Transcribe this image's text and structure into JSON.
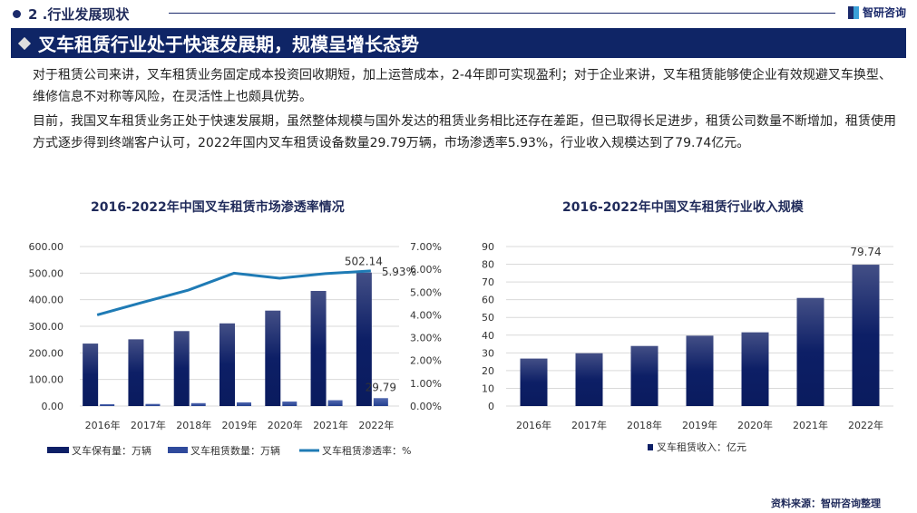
{
  "header": {
    "section": "2 .行业发展现状",
    "logo": "智研咨询",
    "title": "叉车租赁行业处于快速发展期，规模呈增长态势"
  },
  "body": {
    "p1": "对于租赁公司来讲，叉车租赁业务固定成本投资回收期短，加上运营成本，2-4年即可实现盈利；对于企业来讲，叉车租赁能够使企业有效规避叉车换型、维修信息不对称等风险，在灵活性上也颇具优势。",
    "p2": "目前，我国叉车租赁业务正处于快速发展期，虽然整体规模与国外发达的租赁业务相比还存在差距，但已取得长足进步，租赁公司数量不断增加，租赁使用方式逐步得到终端客户认可，2022年国内叉车租赁设备数量29.79万辆，市场渗透率5.93%，行业收入规模达到了79.74亿元。"
  },
  "source": "资料来源：智研咨询整理",
  "colors": {
    "brand": "#0f2566",
    "bar_dark": "#0d1f66",
    "bar_light": "#2f4a9c",
    "line": "#1f7bb5"
  },
  "chart_data": [
    {
      "type": "bar+line",
      "title": "2016-2022年中国叉车租赁市场渗透率情况",
      "categories": [
        "2016年",
        "2017年",
        "2018年",
        "2019年",
        "2020年",
        "2021年",
        "2022年"
      ],
      "ylim": [
        0,
        600
      ],
      "y_ticks": [
        "0.00",
        "100.00",
        "200.00",
        "300.00",
        "400.00",
        "500.00",
        "600.00"
      ],
      "y2lim": [
        0,
        7
      ],
      "y2_ticks": [
        "0.00%",
        "1.00%",
        "2.00%",
        "3.00%",
        "4.00%",
        "5.00%",
        "6.00%",
        "7.00%"
      ],
      "grid": true,
      "legend": "bottom",
      "series": [
        {
          "name": "叉车保有量：万辆",
          "type": "bar",
          "values": [
            235,
            251,
            282,
            311,
            359,
            433,
            502.14
          ],
          "labels": {
            "6": "502.14"
          }
        },
        {
          "name": "叉车租赁数量：万辆",
          "type": "bar",
          "values": [
            7,
            8,
            11,
            14,
            17,
            22,
            29.79
          ],
          "labels": {
            "6": "29.79"
          }
        },
        {
          "name": "叉车租赁渗透率：%",
          "type": "line",
          "axis": "right",
          "values": [
            4.0,
            4.55,
            5.09,
            5.83,
            5.61,
            5.81,
            5.93
          ],
          "labels": {
            "6": "5.93%"
          }
        }
      ]
    },
    {
      "type": "bar",
      "title": "2016-2022年中国叉车租赁行业收入规模",
      "categories": [
        "2016年",
        "2017年",
        "2018年",
        "2019年",
        "2020年",
        "2021年",
        "2022年"
      ],
      "ylim": [
        0,
        90
      ],
      "y_ticks": [
        "0",
        "10",
        "20",
        "30",
        "40",
        "50",
        "60",
        "70",
        "80",
        "90"
      ],
      "grid": true,
      "legend": "bottom",
      "series": [
        {
          "name": "叉车租赁收入：亿元",
          "values": [
            26.8,
            29.8,
            33.9,
            39.7,
            41.6,
            61.0,
            79.74
          ],
          "labels": {
            "6": "79.74"
          }
        }
      ]
    }
  ]
}
